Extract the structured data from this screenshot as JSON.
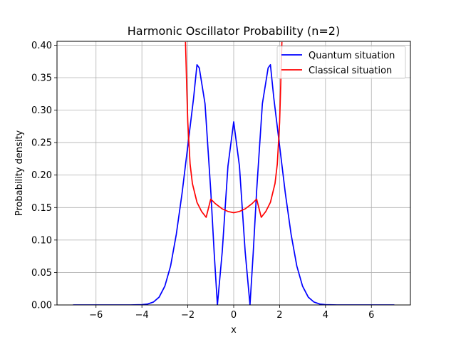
{
  "chart_data": {
    "type": "line",
    "title": "Harmonic Oscillator Probability (n=2)",
    "xlabel": "x",
    "ylabel": "Probability density",
    "xlim": [
      -7.7,
      7.7
    ],
    "ylim": [
      0,
      0.406
    ],
    "xticks": [
      -6,
      -4,
      -2,
      0,
      2,
      4,
      6
    ],
    "xtick_labels": [
      "−6",
      "−4",
      "−2",
      "0",
      "2",
      "4",
      "6"
    ],
    "yticks": [
      0.0,
      0.05,
      0.1,
      0.15,
      0.2,
      0.25,
      0.3,
      0.35,
      0.4
    ],
    "ytick_labels": [
      "0.00",
      "0.05",
      "0.10",
      "0.15",
      "0.20",
      "0.25",
      "0.30",
      "0.35",
      "0.40"
    ],
    "grid": true,
    "legend_position": "top-right",
    "series": [
      {
        "name": "Quantum situation",
        "color": "#0000ff",
        "x": [
          -7.0,
          -6.5,
          -6.0,
          -5.5,
          -5.0,
          -4.5,
          -4.0,
          -3.75,
          -3.5,
          -3.25,
          -3.0,
          -2.75,
          -2.5,
          -2.25,
          -2.0,
          -1.75,
          -1.6,
          -1.5,
          -1.25,
          -1.0,
          -0.85,
          -0.71,
          -0.5,
          -0.25,
          0.0,
          0.25,
          0.5,
          0.71,
          0.85,
          1.0,
          1.25,
          1.5,
          1.6,
          1.75,
          2.0,
          2.25,
          2.5,
          2.75,
          3.0,
          3.25,
          3.5,
          3.75,
          4.0,
          4.5,
          5.0,
          5.5,
          6.0,
          6.5,
          7.0
        ],
        "y": [
          0.0,
          0.0,
          0.0,
          0.0,
          0.0,
          0.0,
          0.0004,
          0.0014,
          0.0044,
          0.012,
          0.029,
          0.06,
          0.109,
          0.172,
          0.245,
          0.318,
          0.37,
          0.365,
          0.31,
          0.176,
          0.08,
          0.0,
          0.082,
          0.214,
          0.282,
          0.214,
          0.082,
          0.0,
          0.08,
          0.176,
          0.31,
          0.365,
          0.37,
          0.318,
          0.245,
          0.172,
          0.109,
          0.06,
          0.029,
          0.012,
          0.0044,
          0.0014,
          0.0004,
          0.0,
          0.0,
          0.0,
          0.0,
          0.0,
          0.0
        ]
      },
      {
        "name": "Classical situation",
        "color": "#ff0000",
        "x": [
          -2.1,
          -2.05,
          -2.0,
          -1.9,
          -1.8,
          -1.6,
          -1.4,
          -1.2,
          -1.0,
          -0.8,
          -0.5,
          -0.25,
          0.0,
          0.25,
          0.5,
          0.8,
          1.0,
          1.2,
          1.4,
          1.6,
          1.8,
          1.9,
          2.0,
          2.05,
          2.1
        ],
        "y": [
          0.405,
          0.34,
          0.281,
          0.217,
          0.187,
          0.158,
          0.144,
          0.135,
          0.163,
          0.156,
          0.148,
          0.144,
          0.142,
          0.144,
          0.148,
          0.156,
          0.163,
          0.135,
          0.144,
          0.158,
          0.187,
          0.217,
          0.281,
          0.34,
          0.405
        ]
      }
    ]
  }
}
